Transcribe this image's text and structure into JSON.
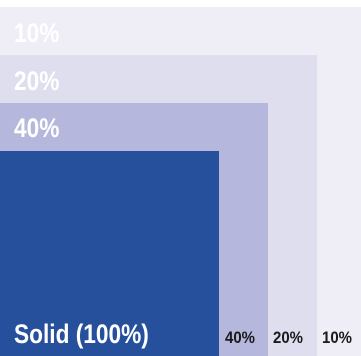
{
  "swatches": {
    "tint_10": {
      "label": "10%",
      "color": "#efeef7"
    },
    "tint_20": {
      "label": "20%",
      "color": "#dedeef"
    },
    "tint_40": {
      "label": "40%",
      "color": "#b5b8dc"
    },
    "solid": {
      "label": "Solid (100%)",
      "color": "#26509c"
    }
  },
  "bottom_labels": {
    "tint_40": "40%",
    "tint_20": "20%",
    "tint_10": "10%"
  }
}
